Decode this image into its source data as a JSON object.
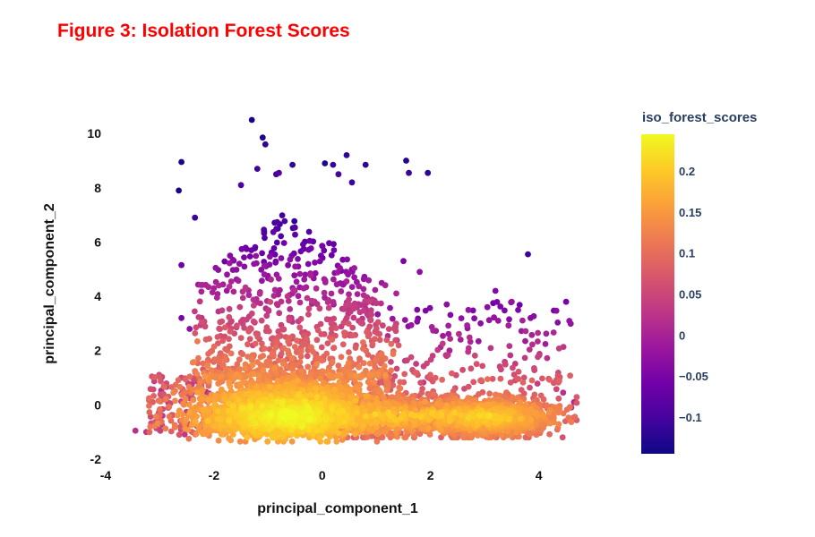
{
  "chart_data": {
    "type": "scatter",
    "title": "Figure 3: Isolation Forest Scores",
    "xlabel": "principal_component_1",
    "ylabel": "principal_component_2",
    "xlim": [
      -4,
      4.9
    ],
    "ylim": [
      -2,
      10.6
    ],
    "xticks": [
      -4,
      -2,
      0,
      2,
      4
    ],
    "yticks": [
      -2,
      0,
      2,
      4,
      6,
      8,
      10
    ],
    "grid": false,
    "colorbar": {
      "title": "iso_forest_scores",
      "range": [
        -0.145,
        0.245
      ],
      "ticks": [
        -0.1,
        -0.05,
        0,
        0.05,
        0.1,
        0.15,
        0.2
      ],
      "tick_labels": [
        "−0.1",
        "−0.05",
        "0",
        "0.05",
        "0.1",
        "0.15",
        "0.2"
      ],
      "colorscale": [
        "#0d0887",
        "#46039f",
        "#7201a8",
        "#9c179e",
        "#bd3786",
        "#d8576b",
        "#ed7953",
        "#fb9f3a",
        "#fdca26",
        "#f0f921"
      ]
    },
    "sample_points": [
      [
        -1.3,
        10.5,
        -0.14
      ],
      [
        -1.1,
        9.85,
        -0.13
      ],
      [
        -1.05,
        9.6,
        -0.12
      ],
      [
        -2.6,
        8.95,
        -0.14
      ],
      [
        -2.65,
        7.9,
        -0.14
      ],
      [
        -2.35,
        6.9,
        -0.11
      ],
      [
        -0.55,
        8.85,
        -0.12
      ],
      [
        0.05,
        8.9,
        -0.13
      ],
      [
        0.2,
        8.85,
        -0.11
      ],
      [
        0.45,
        9.2,
        -0.12
      ],
      [
        0.8,
        8.85,
        -0.12
      ],
      [
        1.55,
        9.0,
        -0.13
      ],
      [
        1.6,
        8.55,
        -0.11
      ],
      [
        1.95,
        8.55,
        -0.12
      ],
      [
        0.55,
        8.2,
        -0.11
      ],
      [
        0.3,
        8.5,
        -0.1
      ],
      [
        -1.5,
        8.1,
        -0.09
      ],
      [
        -0.85,
        8.5,
        -0.1
      ],
      [
        -0.8,
        8.55,
        -0.09
      ],
      [
        -1.2,
        8.7,
        -0.11
      ],
      [
        -2.6,
        5.15,
        -0.06
      ],
      [
        -2.6,
        3.2,
        -0.05
      ],
      [
        -2.45,
        2.8,
        -0.03
      ],
      [
        3.8,
        5.55,
        -0.11
      ],
      [
        1.5,
        5.3,
        -0.05
      ],
      [
        1.8,
        4.9,
        -0.03
      ],
      [
        3.2,
        4.2,
        -0.04
      ],
      [
        3.5,
        3.8,
        -0.02
      ],
      [
        2.3,
        3.7,
        -0.03
      ],
      [
        2.7,
        3.5,
        -0.02
      ],
      [
        3.05,
        3.6,
        -0.03
      ],
      [
        3.25,
        3.1,
        -0.02
      ],
      [
        3.75,
        2.35,
        -0.01
      ],
      [
        2.35,
        2.0,
        0.0
      ],
      [
        -3.45,
        -0.95,
        0.02
      ],
      [
        -3.25,
        -1.0,
        0.03
      ],
      [
        4.6,
        -0.1,
        0.02
      ],
      [
        4.65,
        0.1,
        0.01
      ],
      [
        4.45,
        0.45,
        0.02
      ],
      [
        -2.95,
        -0.4,
        0.03
      ]
    ]
  }
}
